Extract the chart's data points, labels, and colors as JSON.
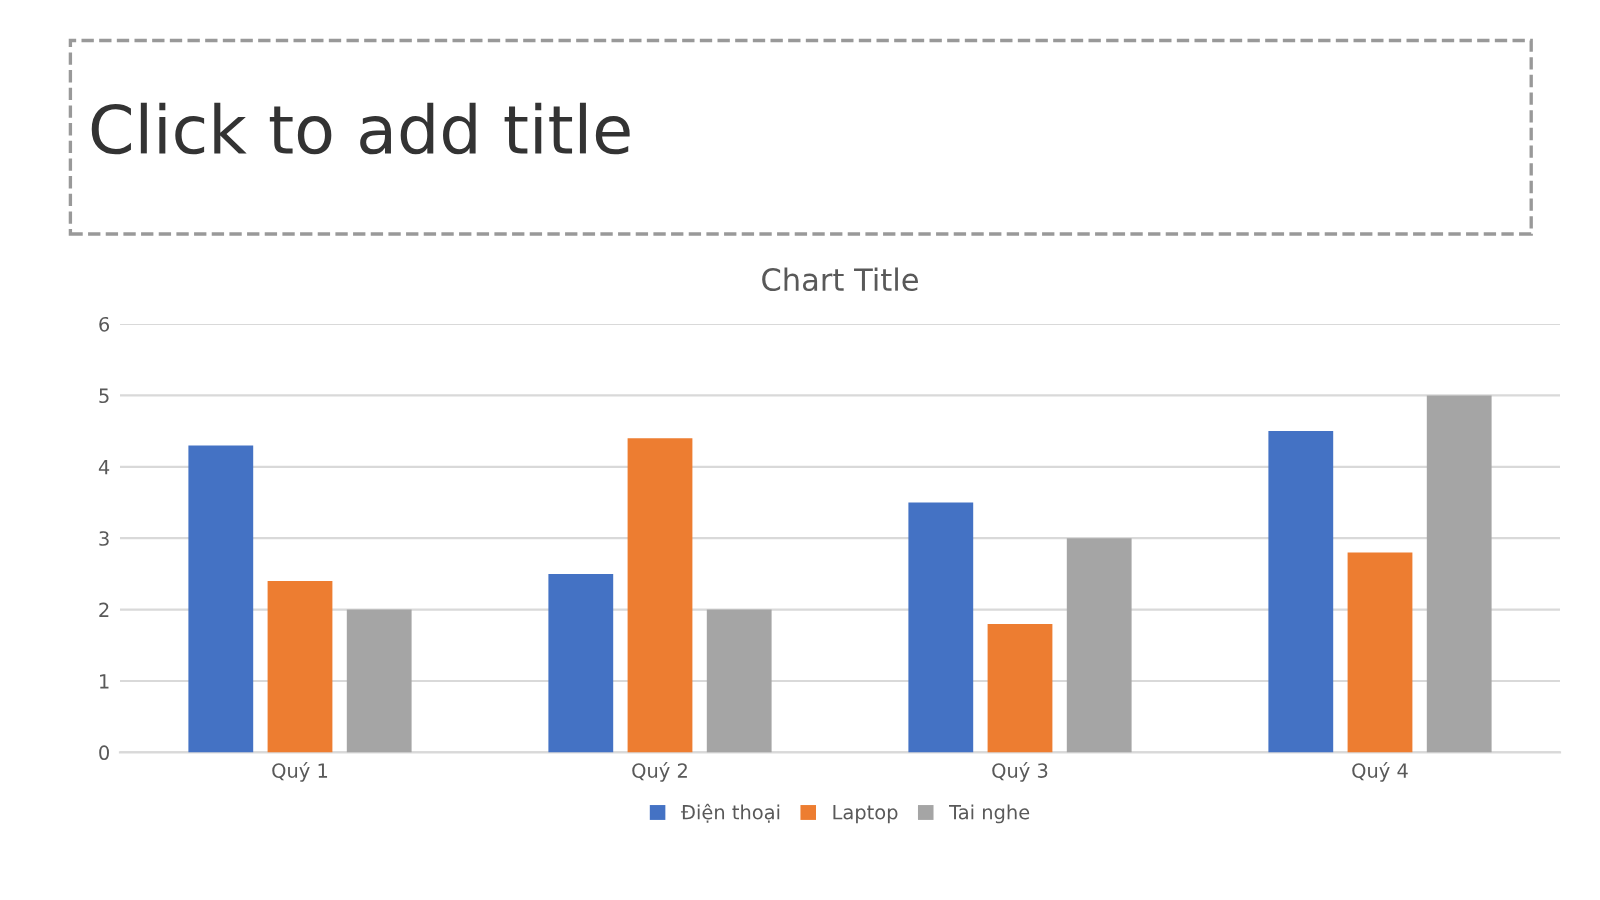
{
  "chart_data": {
    "type": "bar",
    "title": "Chart Title",
    "annotations": [
      "Click to add title"
    ],
    "categories": [
      "Quý 1",
      "Quý 2",
      "Quý 3",
      "Quý 4"
    ],
    "series": [
      {
        "name": "Điện thoại",
        "color": "#4472c4",
        "values": [
          4.3,
          2.5,
          3.5,
          4.5
        ]
      },
      {
        "name": "Laptop",
        "color": "#ed7d31",
        "values": [
          2.4,
          4.4,
          1.8,
          2.8
        ]
      },
      {
        "name": "Tai nghe",
        "color": "#a5a5a5",
        "values": [
          2,
          2,
          3,
          5
        ]
      }
    ],
    "ylim": [
      0,
      6
    ],
    "yticks": [
      0,
      1,
      2,
      3,
      4,
      5,
      6
    ],
    "grid": "y",
    "legend": "bottom"
  }
}
